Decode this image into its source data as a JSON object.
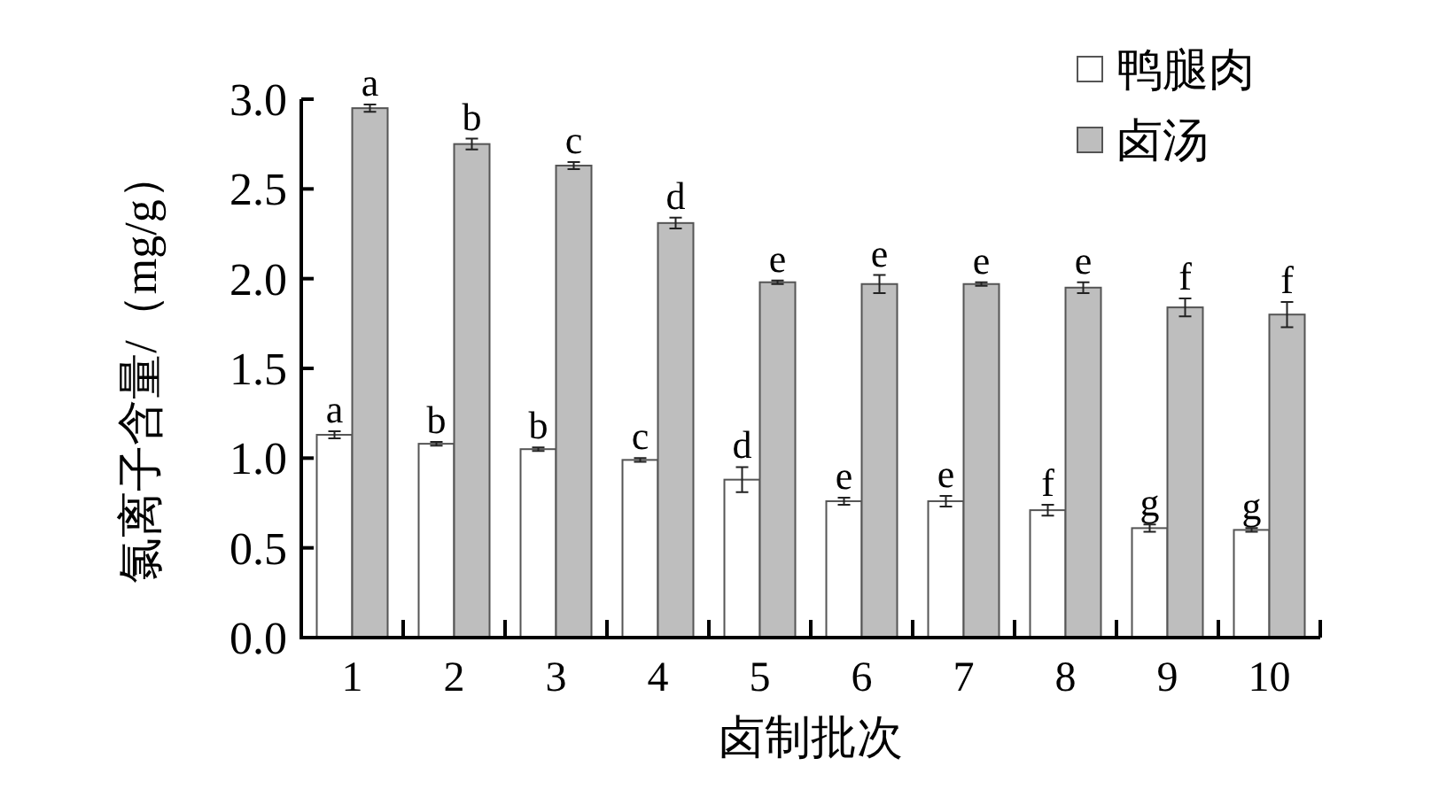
{
  "chart_data": {
    "type": "bar",
    "xlabel": "卤制批次",
    "ylabel": "氯离子含量/（mg/g）",
    "categories": [
      "1",
      "2",
      "3",
      "4",
      "5",
      "6",
      "7",
      "8",
      "9",
      "10"
    ],
    "series": [
      {
        "name": "鸭腿肉",
        "color": "#ffffff",
        "values": [
          1.13,
          1.08,
          1.05,
          0.99,
          0.88,
          0.76,
          0.76,
          0.71,
          0.61,
          0.6
        ],
        "errors": [
          0.02,
          0.01,
          0.01,
          0.01,
          0.07,
          0.02,
          0.03,
          0.03,
          0.02,
          0.01
        ]
      },
      {
        "name": "卤汤",
        "color": "#bebebe",
        "values": [
          2.95,
          2.75,
          2.63,
          2.31,
          1.98,
          1.97,
          1.97,
          1.95,
          1.84,
          1.8
        ],
        "errors": [
          0.02,
          0.03,
          0.02,
          0.03,
          0.01,
          0.05,
          0.01,
          0.03,
          0.05,
          0.07
        ]
      }
    ],
    "ylim": [
      0,
      3.0
    ],
    "yticks": [
      {
        "value": 0,
        "label": "0.0"
      },
      0.5,
      {
        "value": 1,
        "label": "1.0"
      },
      1.5,
      {
        "value": 2,
        "label": "2.0"
      },
      2.5,
      {
        "value": 3,
        "label": "3.0"
      }
    ],
    "legend": "top right",
    "annotations": [
      {
        "text": "a",
        "x": "1",
        "y": 1.13
      },
      {
        "text": "b",
        "x": "2",
        "y": 1.08
      },
      {
        "text": "b",
        "x": "3",
        "y": 1.05
      },
      {
        "text": "c",
        "x": "4",
        "y": 0.99
      },
      {
        "text": "d",
        "x": "5",
        "y": 0.88
      },
      {
        "text": "e",
        "x": "6",
        "y": 0.76
      },
      {
        "text": "e",
        "x": "7",
        "y": 0.76
      },
      {
        "text": "f",
        "x": "8",
        "y": 0.71
      },
      {
        "text": "g",
        "x": "9",
        "y": 0.61
      },
      {
        "text": "g",
        "x": "10",
        "y": 0.6
      },
      {
        "text": "a",
        "x": "1",
        "y": 2.95
      },
      {
        "text": "b",
        "x": "2",
        "y": 2.75
      },
      {
        "text": "c",
        "x": "3",
        "y": 2.63
      },
      {
        "text": "d",
        "x": "4",
        "y": 2.31
      },
      {
        "text": "e",
        "x": "5",
        "y": 1.98
      },
      {
        "text": "e",
        "x": "6",
        "y": 1.97
      },
      {
        "text": "e",
        "x": "7",
        "y": 1.97
      },
      {
        "text": "e",
        "x": "8",
        "y": 1.95
      },
      {
        "text": "f",
        "x": "9",
        "y": 1.84
      },
      {
        "text": "f",
        "x": "10",
        "y": 1.8
      }
    ]
  }
}
